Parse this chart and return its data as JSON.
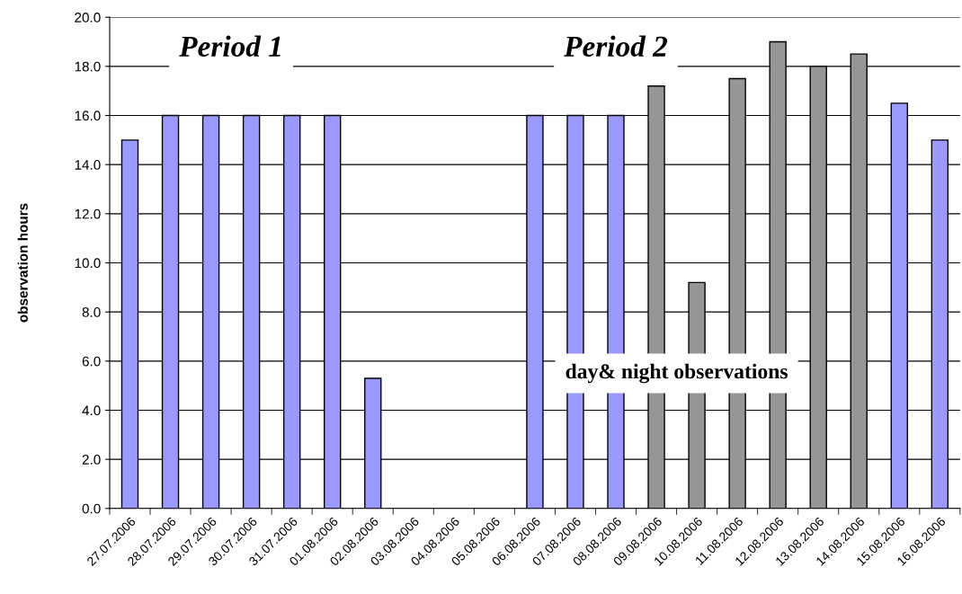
{
  "chart_data": {
    "type": "bar",
    "ylabel": "observation hours",
    "categories": [
      "27.07.2006",
      "28.07.2006",
      "29.07.2006",
      "30.07.2006",
      "31.07.2006",
      "01.08.2006",
      "02.08.2006",
      "03.08.2006",
      "04.08.2006",
      "05.08.2006",
      "06.08.2006",
      "07.08.2006",
      "08.08.2006",
      "09.08.2006",
      "10.08.2006",
      "11.08.2006",
      "12.08.2006",
      "13.08.2006",
      "14.08.2006",
      "15.08.2006",
      "16.08.2006"
    ],
    "values": [
      15,
      16,
      16,
      16,
      16,
      16,
      5.3,
      null,
      null,
      null,
      16,
      16,
      16,
      17.2,
      9.2,
      17.5,
      19,
      18,
      18.5,
      16.5,
      15
    ],
    "colors": [
      "#9999ff",
      "#9999ff",
      "#9999ff",
      "#9999ff",
      "#9999ff",
      "#9999ff",
      "#9999ff",
      "#9999ff",
      "#9999ff",
      "#9999ff",
      "#9999ff",
      "#9999ff",
      "#9999ff",
      "#969696",
      "#969696",
      "#969696",
      "#969696",
      "#969696",
      "#969696",
      "#9999ff",
      "#9999ff"
    ],
    "ylim": [
      0,
      20
    ],
    "yticks": [
      {
        "value": 0,
        "label": "0.0"
      },
      {
        "value": 2,
        "label": "2.0"
      },
      {
        "value": 4,
        "label": "4.0"
      },
      {
        "value": 6,
        "label": "6.0"
      },
      {
        "value": 8,
        "label": "8.0"
      },
      {
        "value": 10,
        "label": "10.0"
      },
      {
        "value": 12,
        "label": "12.0"
      },
      {
        "value": 14,
        "label": "14.0"
      },
      {
        "value": 16,
        "label": "16.0"
      },
      {
        "value": 18,
        "label": "18.0"
      },
      {
        "value": 20,
        "label": "20.0"
      }
    ],
    "grid": "y",
    "annotations": [
      "Period 1",
      "Period 2",
      "day& night observations"
    ]
  }
}
